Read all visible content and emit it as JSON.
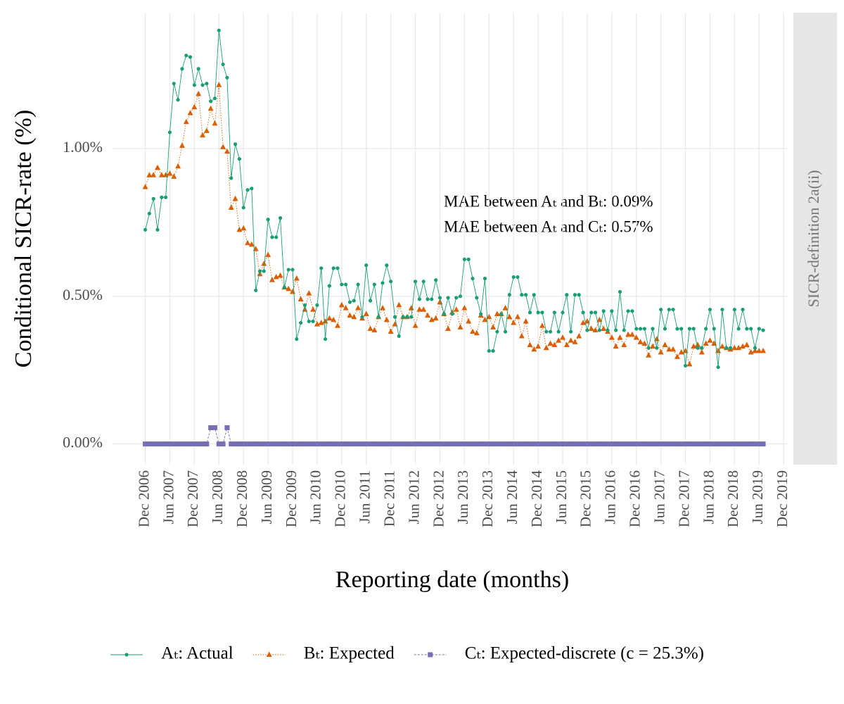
{
  "chart_data": {
    "type": "line",
    "x_label": "Reporting date (months)",
    "y_label": "Conditional SICR-rate (%)",
    "facet_label": "SICR-definition 2a(ii)",
    "annotations": [
      "MAE between Aₜ and Bₜ: 0.09%",
      "MAE between Aₜ and Cₜ: 0.57%"
    ],
    "x": [
      "2006-12",
      "2007-01",
      "2007-02",
      "2007-03",
      "2007-04",
      "2007-05",
      "2007-06",
      "2007-07",
      "2007-08",
      "2007-09",
      "2007-10",
      "2007-11",
      "2007-12",
      "2008-01",
      "2008-02",
      "2008-03",
      "2008-04",
      "2008-05",
      "2008-06",
      "2008-07",
      "2008-08",
      "2008-09",
      "2008-10",
      "2008-11",
      "2008-12",
      "2009-01",
      "2009-02",
      "2009-03",
      "2009-04",
      "2009-05",
      "2009-06",
      "2009-07",
      "2009-08",
      "2009-09",
      "2009-10",
      "2009-11",
      "2009-12",
      "2010-01",
      "2010-02",
      "2010-03",
      "2010-04",
      "2010-05",
      "2010-06",
      "2010-07",
      "2010-08",
      "2010-09",
      "2010-10",
      "2010-11",
      "2010-12",
      "2011-01",
      "2011-02",
      "2011-03",
      "2011-04",
      "2011-05",
      "2011-06",
      "2011-07",
      "2011-08",
      "2011-09",
      "2011-10",
      "2011-11",
      "2011-12",
      "2012-01",
      "2012-02",
      "2012-03",
      "2012-04",
      "2012-05",
      "2012-06",
      "2012-07",
      "2012-08",
      "2012-09",
      "2012-10",
      "2012-11",
      "2012-12",
      "2013-01",
      "2013-02",
      "2013-03",
      "2013-04",
      "2013-05",
      "2013-06",
      "2013-07",
      "2013-08",
      "2013-09",
      "2013-10",
      "2013-11",
      "2013-12",
      "2014-01",
      "2014-02",
      "2014-03",
      "2014-04",
      "2014-05",
      "2014-06",
      "2014-07",
      "2014-08",
      "2014-09",
      "2014-10",
      "2014-11",
      "2014-12",
      "2015-01",
      "2015-02",
      "2015-03",
      "2015-04",
      "2015-05",
      "2015-06",
      "2015-07",
      "2015-08",
      "2015-09",
      "2015-10",
      "2015-11",
      "2015-12",
      "2016-01",
      "2016-02",
      "2016-03",
      "2016-04",
      "2016-05",
      "2016-06",
      "2016-07",
      "2016-08",
      "2016-09",
      "2016-10",
      "2016-11",
      "2016-12",
      "2017-01",
      "2017-02",
      "2017-03",
      "2017-04",
      "2017-05",
      "2017-06",
      "2017-07",
      "2017-08",
      "2017-09",
      "2017-10",
      "2017-11",
      "2017-12",
      "2018-01",
      "2018-02",
      "2018-03",
      "2018-04",
      "2018-05",
      "2018-06",
      "2018-07",
      "2018-08",
      "2018-09",
      "2018-10",
      "2018-11",
      "2018-12",
      "2019-01",
      "2019-02",
      "2019-03",
      "2019-04",
      "2019-05",
      "2019-06",
      "2019-07"
    ],
    "series": [
      {
        "name": "Aₜ: Actual",
        "color": "#1b9e77",
        "marker": "circle",
        "dash": "none",
        "values": [
          0.725,
          0.78,
          0.83,
          0.725,
          0.835,
          0.835,
          1.055,
          1.22,
          1.165,
          1.27,
          1.315,
          1.31,
          1.215,
          1.27,
          1.215,
          1.22,
          1.16,
          1.17,
          1.4,
          1.285,
          1.24,
          0.9,
          1.015,
          0.965,
          0.8,
          0.86,
          0.865,
          0.52,
          0.585,
          0.585,
          0.76,
          0.7,
          0.7,
          0.765,
          0.53,
          0.59,
          0.59,
          0.355,
          0.41,
          0.47,
          0.415,
          0.415,
          0.47,
          0.595,
          0.355,
          0.535,
          0.595,
          0.595,
          0.54,
          0.54,
          0.48,
          0.485,
          0.54,
          0.43,
          0.605,
          0.485,
          0.54,
          0.43,
          0.545,
          0.605,
          0.55,
          0.43,
          0.365,
          0.43,
          0.43,
          0.43,
          0.55,
          0.49,
          0.55,
          0.49,
          0.49,
          0.555,
          0.495,
          0.44,
          0.495,
          0.44,
          0.495,
          0.5,
          0.625,
          0.625,
          0.56,
          0.495,
          0.44,
          0.56,
          0.315,
          0.315,
          0.38,
          0.44,
          0.38,
          0.505,
          0.565,
          0.565,
          0.505,
          0.505,
          0.445,
          0.505,
          0.445,
          0.445,
          0.38,
          0.38,
          0.445,
          0.38,
          0.445,
          0.505,
          0.38,
          0.505,
          0.505,
          0.445,
          0.385,
          0.445,
          0.445,
          0.385,
          0.45,
          0.385,
          0.45,
          0.385,
          0.515,
          0.385,
          0.45,
          0.45,
          0.39,
          0.39,
          0.39,
          0.325,
          0.39,
          0.325,
          0.455,
          0.39,
          0.455,
          0.455,
          0.39,
          0.39,
          0.265,
          0.39,
          0.39,
          0.325,
          0.325,
          0.39,
          0.455,
          0.39,
          0.26,
          0.455,
          0.325,
          0.325,
          0.455,
          0.39,
          0.455,
          0.39,
          0.39,
          0.325,
          0.39,
          0.385
        ]
      },
      {
        "name": "Bₜ: Expected",
        "color": "#d95f02",
        "marker": "triangle",
        "dash": "1.5 2",
        "values": [
          0.87,
          0.91,
          0.91,
          0.935,
          0.91,
          0.91,
          0.915,
          0.905,
          0.94,
          1.01,
          1.09,
          1.12,
          1.14,
          1.185,
          1.045,
          1.06,
          1.135,
          1.085,
          1.215,
          1.005,
          0.99,
          0.8,
          0.83,
          0.725,
          0.73,
          0.68,
          0.675,
          0.66,
          0.575,
          0.61,
          0.64,
          0.555,
          0.565,
          0.57,
          0.53,
          0.525,
          0.515,
          0.56,
          0.49,
          0.455,
          0.51,
          0.455,
          0.405,
          0.41,
          0.415,
          0.425,
          0.42,
          0.4,
          0.47,
          0.46,
          0.435,
          0.43,
          0.46,
          0.425,
          0.44,
          0.39,
          0.385,
          0.43,
          0.46,
          0.42,
          0.38,
          0.405,
          0.47,
          0.43,
          0.43,
          0.46,
          0.4,
          0.455,
          0.455,
          0.435,
          0.42,
          0.425,
          0.48,
          0.44,
          0.39,
          0.445,
          0.455,
          0.395,
          0.46,
          0.415,
          0.38,
          0.375,
          0.435,
          0.42,
          0.43,
          0.395,
          0.44,
          0.44,
          0.46,
          0.43,
          0.41,
          0.43,
          0.365,
          0.415,
          0.335,
          0.32,
          0.33,
          0.4,
          0.325,
          0.34,
          0.335,
          0.35,
          0.36,
          0.335,
          0.35,
          0.345,
          0.365,
          0.41,
          0.415,
          0.39,
          0.385,
          0.42,
          0.39,
          0.38,
          0.36,
          0.33,
          0.36,
          0.335,
          0.37,
          0.37,
          0.36,
          0.345,
          0.34,
          0.3,
          0.33,
          0.355,
          0.31,
          0.335,
          0.32,
          0.32,
          0.295,
          0.31,
          0.315,
          0.27,
          0.33,
          0.335,
          0.31,
          0.34,
          0.35,
          0.34,
          0.315,
          0.33,
          0.325,
          0.32,
          0.325,
          0.325,
          0.33,
          0.335,
          0.31,
          0.315,
          0.315,
          0.315
        ]
      },
      {
        "name": "Cₜ: Expected-discrete (c = 25.3%)",
        "color": "#7570b3",
        "marker": "square",
        "dash": "3 2",
        "values": [
          0,
          0,
          0,
          0,
          0,
          0,
          0,
          0,
          0,
          0,
          0,
          0,
          0,
          0,
          0,
          0,
          0.055,
          0.055,
          0,
          0,
          0.055,
          0,
          0,
          0,
          0,
          0,
          0,
          0,
          0,
          0,
          0,
          0,
          0,
          0,
          0,
          0,
          0,
          0,
          0,
          0,
          0,
          0,
          0,
          0,
          0,
          0,
          0,
          0,
          0,
          0,
          0,
          0,
          0,
          0,
          0,
          0,
          0,
          0,
          0,
          0,
          0,
          0,
          0,
          0,
          0,
          0,
          0,
          0,
          0,
          0,
          0,
          0,
          0,
          0,
          0,
          0,
          0,
          0,
          0,
          0,
          0,
          0,
          0,
          0,
          0,
          0,
          0,
          0,
          0,
          0,
          0,
          0,
          0,
          0,
          0,
          0,
          0,
          0,
          0,
          0,
          0,
          0,
          0,
          0,
          0,
          0,
          0,
          0,
          0,
          0,
          0,
          0,
          0,
          0,
          0,
          0,
          0,
          0,
          0,
          0,
          0,
          0,
          0,
          0,
          0,
          0,
          0,
          0,
          0,
          0,
          0,
          0,
          0,
          0,
          0,
          0,
          0,
          0,
          0,
          0,
          0,
          0,
          0,
          0,
          0,
          0,
          0,
          0,
          0,
          0,
          0,
          0
        ]
      }
    ],
    "xlim": [
      "2006-04",
      "2020-01"
    ],
    "xticks": [
      {
        "value": "2006-12",
        "label": "Dec 2006"
      },
      {
        "value": "2007-06",
        "label": "Jun 2007"
      },
      {
        "value": "2007-12",
        "label": "Dec 2007"
      },
      {
        "value": "2008-06",
        "label": "Jun 2008"
      },
      {
        "value": "2008-12",
        "label": "Dec 2008"
      },
      {
        "value": "2009-06",
        "label": "Jun 2009"
      },
      {
        "value": "2009-12",
        "label": "Dec 2009"
      },
      {
        "value": "2010-06",
        "label": "Jun 2010"
      },
      {
        "value": "2010-12",
        "label": "Dec 2010"
      },
      {
        "value": "2011-06",
        "label": "Jun 2011"
      },
      {
        "value": "2011-12",
        "label": "Dec 2011"
      },
      {
        "value": "2012-06",
        "label": "Jun 2012"
      },
      {
        "value": "2012-12",
        "label": "Dec 2012"
      },
      {
        "value": "2013-06",
        "label": "Jun 2013"
      },
      {
        "value": "2013-12",
        "label": "Dec 2013"
      },
      {
        "value": "2014-06",
        "label": "Jun 2014"
      },
      {
        "value": "2014-12",
        "label": "Dec 2014"
      },
      {
        "value": "2015-06",
        "label": "Jun 2015"
      },
      {
        "value": "2015-12",
        "label": "Dec 2015"
      },
      {
        "value": "2016-06",
        "label": "Jun 2016"
      },
      {
        "value": "2016-12",
        "label": "Dec 2016"
      },
      {
        "value": "2017-06",
        "label": "Jun 2017"
      },
      {
        "value": "2017-12",
        "label": "Dec 2017"
      },
      {
        "value": "2018-06",
        "label": "Jun 2018"
      },
      {
        "value": "2018-12",
        "label": "Dec 2018"
      },
      {
        "value": "2019-06",
        "label": "Jun 2019"
      },
      {
        "value": "2019-12",
        "label": "Dec 2019"
      }
    ],
    "ylim": [
      -0.07,
      1.46
    ],
    "yticks": [
      {
        "value": 0,
        "label": "0.00%"
      },
      {
        "value": 0.5,
        "label": "0.50%"
      },
      {
        "value": 1,
        "label": "1.00%"
      }
    ],
    "grid": true,
    "legend_position": "bottom"
  }
}
